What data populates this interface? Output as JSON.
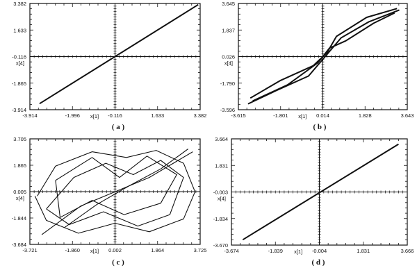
{
  "chart_data": [
    {
      "type": "line",
      "caption": "( a )",
      "xlabel": "x[1]",
      "ylabel": "x[4]",
      "xlim": [
        -3.914,
        3.382
      ],
      "ylim": [
        -3.914,
        3.382
      ],
      "xticks": [
        "-3.914",
        "-1.996",
        "-0.116",
        "1.633",
        "3.382"
      ],
      "yticks": [
        "-3.914",
        "-1.865",
        "-0.116",
        "1.633",
        "3.382"
      ],
      "grid": "crosshair-at-origin",
      "series": [
        {
          "x": [
            -3.5,
            3.3
          ],
          "y": [
            -3.5,
            3.3
          ]
        }
      ]
    },
    {
      "type": "line",
      "caption": "( b )",
      "xlabel": "x[1]",
      "ylabel": "x[4]",
      "xlim": [
        -3.615,
        3.643
      ],
      "ylim": [
        -3.596,
        3.645
      ],
      "xticks": [
        "-3.615",
        "-1.801",
        "0.014",
        "1.828",
        "3.643"
      ],
      "yticks": [
        "-3.596",
        "-1.790",
        "0.026",
        "1.837",
        "3.645"
      ],
      "grid": "crosshair-at-origin",
      "series": [
        {
          "x": [
            -3.2,
            -2.0,
            -0.6,
            0.1,
            0.8,
            2.0,
            3.3
          ],
          "y": [
            -3.2,
            -2.3,
            -1.3,
            0.0,
            1.3,
            2.4,
            3.2
          ]
        },
        {
          "x": [
            -3.1,
            -1.8,
            -0.4,
            0.2,
            0.6,
            1.9,
            3.2
          ],
          "y": [
            -2.8,
            -1.6,
            -0.6,
            0.3,
            1.4,
            2.7,
            3.3
          ]
        },
        {
          "x": [
            -3.0,
            -1.5,
            -0.2,
            0.3,
            1.0,
            2.2,
            3.1
          ],
          "y": [
            -3.0,
            -1.9,
            -0.4,
            0.6,
            1.1,
            2.3,
            3.0
          ]
        }
      ]
    },
    {
      "type": "line",
      "caption": "( c )",
      "xlabel": "x[1]",
      "ylabel": "x[4]",
      "xlim": [
        -3.721,
        3.725
      ],
      "ylim": [
        -3.684,
        3.705
      ],
      "xticks": [
        "-3.721",
        "-1.860",
        "0.002",
        "1.864",
        "3.725"
      ],
      "yticks": [
        "-3.684",
        "-1.844",
        "0.005",
        "1.865",
        "3.705"
      ],
      "grid": "crosshair-at-origin",
      "series": [
        {
          "x": [
            -3.4,
            -2.6,
            -1.0,
            0.5,
            1.8,
            3.0,
            3.5,
            3.0,
            1.5,
            0.0,
            -1.6,
            -3.0,
            -3.5
          ],
          "y": [
            -0.3,
            1.8,
            2.8,
            2.4,
            2.9,
            2.0,
            0.0,
            -1.9,
            -2.8,
            -2.2,
            -2.9,
            -2.0,
            -0.3
          ]
        },
        {
          "x": [
            -3.0,
            -1.8,
            -0.4,
            0.8,
            2.0,
            3.0,
            2.4,
            1.0,
            -0.5,
            -2.0,
            -3.0
          ],
          "y": [
            -1.2,
            1.0,
            2.0,
            1.2,
            2.2,
            1.0,
            -1.6,
            -2.4,
            -1.4,
            -2.3,
            -1.2
          ]
        },
        {
          "x": [
            -3.2,
            -1.5,
            0.0,
            1.5,
            3.4
          ],
          "y": [
            -3.0,
            -1.0,
            0.0,
            1.0,
            2.8
          ]
        },
        {
          "x": [
            -2.6,
            -1.0,
            0.2,
            1.4,
            2.7,
            2.0,
            0.4,
            -1.0,
            -2.4,
            -2.6
          ],
          "y": [
            0.8,
            2.4,
            1.0,
            2.5,
            1.2,
            -0.8,
            -1.6,
            -0.6,
            -1.8,
            0.8
          ]
        },
        {
          "x": [
            -2.2,
            -0.8,
            0.6,
            2.0,
            3.2
          ],
          "y": [
            -2.5,
            -0.9,
            0.4,
            1.6,
            3.0
          ]
        }
      ]
    },
    {
      "type": "line",
      "caption": "( d )",
      "xlabel": "x[1]",
      "ylabel": "x[4]",
      "xlim": [
        -3.674,
        3.666
      ],
      "ylim": [
        -3.67,
        3.664
      ],
      "xticks": [
        "-3.674",
        "-1.839",
        "-0.004",
        "1.831",
        "3.666"
      ],
      "yticks": [
        "-3.670",
        "-1.834",
        "-0.003",
        "1.831",
        "3.664"
      ],
      "grid": "crosshair-at-origin",
      "series": [
        {
          "x": [
            -3.2,
            3.3
          ],
          "y": [
            -3.3,
            3.3
          ]
        }
      ]
    }
  ]
}
